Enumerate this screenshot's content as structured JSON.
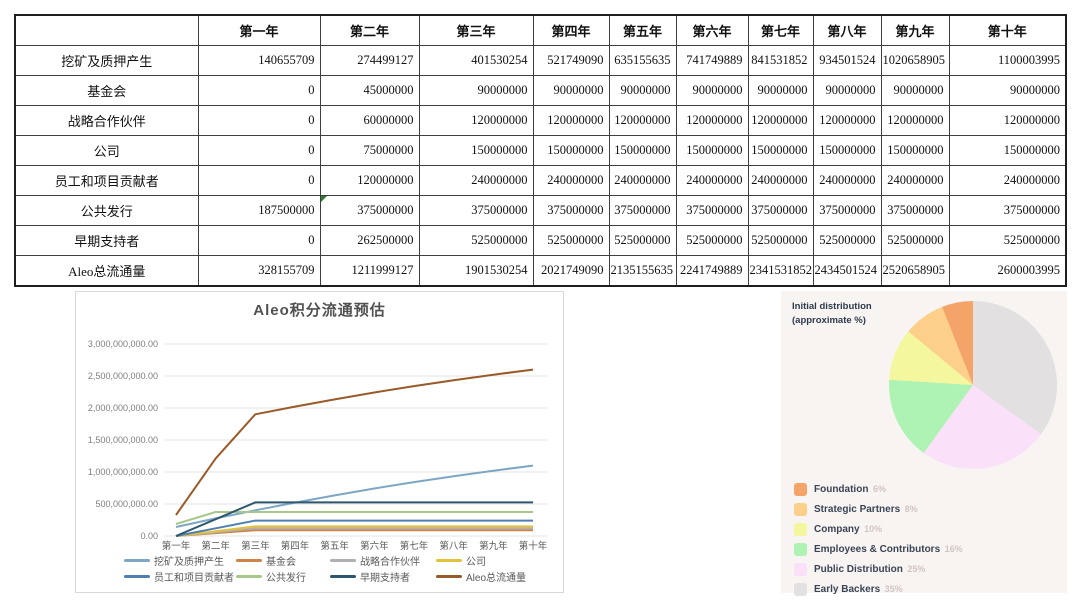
{
  "chart_data": [
    {
      "type": "table",
      "corner_label": "",
      "columns": [
        "第一年",
        "第二年",
        "第三年",
        "第四年",
        "第五年",
        "第六年",
        "第七年",
        "第八年",
        "第九年",
        "第十年"
      ],
      "rows": [
        {
          "label": "挖矿及质押产生",
          "values": [
            140655709,
            274499127,
            401530254,
            521749090,
            635155635,
            741749889,
            841531852,
            934501524,
            1020658905,
            1100003995
          ]
        },
        {
          "label": "基金会",
          "values": [
            0,
            45000000,
            90000000,
            90000000,
            90000000,
            90000000,
            90000000,
            90000000,
            90000000,
            90000000
          ]
        },
        {
          "label": "战略合作伙伴",
          "values": [
            0,
            60000000,
            120000000,
            120000000,
            120000000,
            120000000,
            120000000,
            120000000,
            120000000,
            120000000
          ]
        },
        {
          "label": "公司",
          "values": [
            0,
            75000000,
            150000000,
            150000000,
            150000000,
            150000000,
            150000000,
            150000000,
            150000000,
            150000000
          ]
        },
        {
          "label": "员工和项目贡献者",
          "values": [
            0,
            120000000,
            240000000,
            240000000,
            240000000,
            240000000,
            240000000,
            240000000,
            240000000,
            240000000
          ]
        },
        {
          "label": "公共发行",
          "values": [
            187500000,
            375000000,
            375000000,
            375000000,
            375000000,
            375000000,
            375000000,
            375000000,
            375000000,
            375000000
          ]
        },
        {
          "label": "早期支持者",
          "values": [
            0,
            262500000,
            525000000,
            525000000,
            525000000,
            525000000,
            525000000,
            525000000,
            525000000,
            525000000
          ]
        },
        {
          "label": "Aleo总流通量",
          "values": [
            328155709,
            1211999127,
            1901530254,
            2021749090,
            2135155635,
            2241749889,
            2341531852,
            2434501524,
            2520658905,
            2600003995
          ]
        }
      ],
      "note_marker": {
        "row": 5,
        "col": 1
      }
    },
    {
      "type": "line",
      "title": "Aleo积分流通预估",
      "categories": [
        "第一年",
        "第二年",
        "第三年",
        "第四年",
        "第五年",
        "第六年",
        "第七年",
        "第八年",
        "第九年",
        "第十年"
      ],
      "ylim": [
        0,
        3000000000
      ],
      "ytick_labels": [
        "0.00",
        "500,000,000.00",
        "1,000,000,000.00",
        "1,500,000,000.00",
        "2,000,000,000.00",
        "2,500,000,000.00",
        "3,000,000,000.00"
      ],
      "grid": true,
      "legend_position": "bottom",
      "series": [
        {
          "name": "挖矿及质押产生",
          "color": "#7da7c4",
          "values": [
            140655709,
            274499127,
            401530254,
            521749090,
            635155635,
            741749889,
            841531852,
            934501524,
            1020658905,
            1100003995
          ]
        },
        {
          "name": "基金会",
          "color": "#cd8446",
          "values": [
            0,
            45000000,
            90000000,
            90000000,
            90000000,
            90000000,
            90000000,
            90000000,
            90000000,
            90000000
          ]
        },
        {
          "name": "战略合作伙伴",
          "color": "#b0b0b0",
          "values": [
            0,
            60000000,
            120000000,
            120000000,
            120000000,
            120000000,
            120000000,
            120000000,
            120000000,
            120000000
          ]
        },
        {
          "name": "公司",
          "color": "#e2c23d",
          "values": [
            0,
            75000000,
            150000000,
            150000000,
            150000000,
            150000000,
            150000000,
            150000000,
            150000000,
            150000000
          ]
        },
        {
          "name": "员工和项目贡献者",
          "color": "#4f7fae",
          "values": [
            0,
            120000000,
            240000000,
            240000000,
            240000000,
            240000000,
            240000000,
            240000000,
            240000000,
            240000000
          ]
        },
        {
          "name": "公共发行",
          "color": "#a7c78b",
          "values": [
            187500000,
            375000000,
            375000000,
            375000000,
            375000000,
            375000000,
            375000000,
            375000000,
            375000000,
            375000000
          ]
        },
        {
          "name": "早期支持者",
          "color": "#2d5870",
          "values": [
            0,
            262500000,
            525000000,
            525000000,
            525000000,
            525000000,
            525000000,
            525000000,
            525000000,
            525000000
          ]
        },
        {
          "name": "Aleo总流通量",
          "color": "#9a5a28",
          "values": [
            328155709,
            1211999127,
            1901530254,
            2021749090,
            2135155635,
            2241749889,
            2341531852,
            2434501524,
            2520658905,
            2600003995
          ]
        }
      ]
    },
    {
      "type": "pie",
      "title_line1": "Initial distribution",
      "title_line2": "(approximate %)",
      "start": "top",
      "direction": "clockwise",
      "slices": [
        {
          "label": "Foundation",
          "pct": 6,
          "pct_label": "6%",
          "color": "#f5a469"
        },
        {
          "label": "Strategic Partners",
          "pct": 8,
          "pct_label": "8%",
          "color": "#fcd08b"
        },
        {
          "label": "Company",
          "pct": 10,
          "pct_label": "10%",
          "color": "#f4f79e"
        },
        {
          "label": "Employees & Contributors",
          "pct": 16,
          "pct_label": "16%",
          "color": "#aef2b4"
        },
        {
          "label": "Public Distribution",
          "pct": 25,
          "pct_label": "25%",
          "color": "#fae1f9"
        },
        {
          "label": "Early Backers",
          "pct": 35,
          "pct_label": "35%",
          "color": "#e2e0e0"
        }
      ]
    }
  ]
}
